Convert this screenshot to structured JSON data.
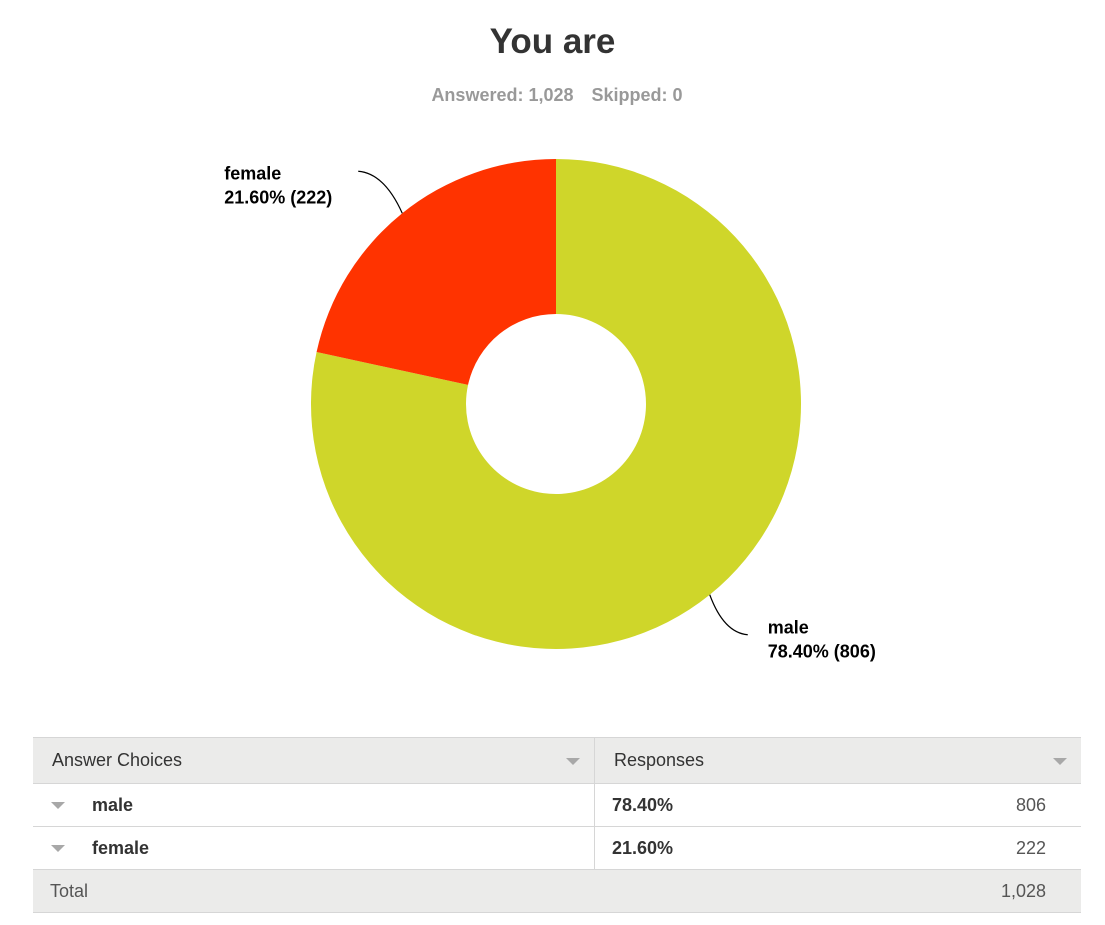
{
  "question": {
    "title": "You are",
    "answered_label": "Answered: 1,028",
    "skipped_label": "Skipped: 0"
  },
  "chart_data": {
    "type": "pie",
    "donut": true,
    "title": "You are",
    "slices": [
      {
        "label": "male",
        "value": 806,
        "percent": 78.4,
        "label_line1": "male",
        "label_line2": "78.40% (806)",
        "color": "#cfd62a"
      },
      {
        "label": "female",
        "value": 222,
        "percent": 21.6,
        "label_line1": "female",
        "label_line2": "21.60% (222)",
        "color": "#ff3300"
      }
    ],
    "legend": "none"
  },
  "table": {
    "headers": {
      "choices": "Answer Choices",
      "responses": "Responses"
    },
    "rows": [
      {
        "choice": "male",
        "percent": "78.40%",
        "count": "806"
      },
      {
        "choice": "female",
        "percent": "21.60%",
        "count": "222"
      }
    ],
    "total_label": "Total",
    "total_count": "1,028"
  }
}
